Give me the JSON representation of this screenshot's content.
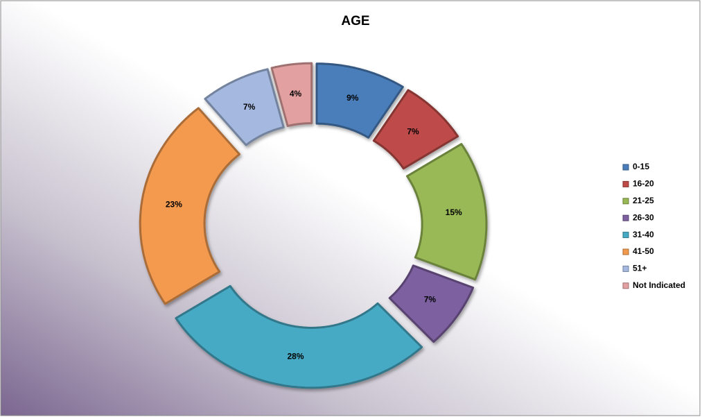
{
  "chart_data": {
    "type": "donut",
    "title": "AGE",
    "categories": [
      "0-15",
      "16-20",
      "21-25",
      "26-30",
      "31-40",
      "41-50",
      "51+",
      "Not Indicated"
    ],
    "values": [
      9,
      7,
      15,
      7,
      28,
      23,
      7,
      4
    ],
    "value_labels": [
      "9%",
      "7%",
      "15%",
      "7%",
      "28%",
      "23%",
      "7%",
      "4%"
    ],
    "colors": [
      "#4a7ebb",
      "#be4b48",
      "#98b954",
      "#7d60a0",
      "#46aac5",
      "#f39a4f",
      "#a5b9e0",
      "#e3a0a0"
    ],
    "legend": "right"
  }
}
